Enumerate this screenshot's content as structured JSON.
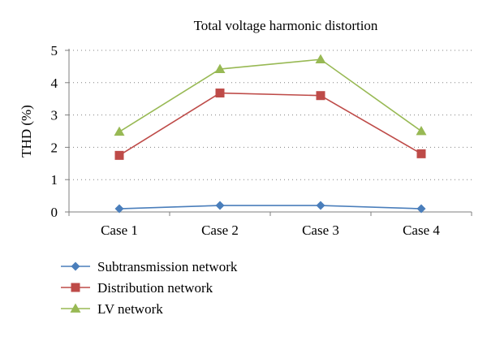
{
  "chart_data": {
    "type": "line",
    "title": "Total voltage harmonic distortion",
    "xlabel": "",
    "ylabel": "THD (%)",
    "categories": [
      "Case 1",
      "Case 2",
      "Case 3",
      "Case 4"
    ],
    "ylim": [
      0,
      5
    ],
    "yticks": [
      0,
      1,
      2,
      3,
      4,
      5
    ],
    "grid": true,
    "legend": "bottom-left",
    "series": [
      {
        "name": "Subtransmission network",
        "values": [
          0.1,
          0.2,
          0.2,
          0.1
        ],
        "color": "#4a7ebb",
        "marker": "diamond"
      },
      {
        "name": "Distribution network",
        "values": [
          1.75,
          3.68,
          3.6,
          1.8
        ],
        "color": "#be4b48",
        "marker": "square"
      },
      {
        "name": "LV network",
        "values": [
          2.48,
          4.42,
          4.72,
          2.5
        ],
        "color": "#98b954",
        "marker": "triangle"
      }
    ]
  }
}
